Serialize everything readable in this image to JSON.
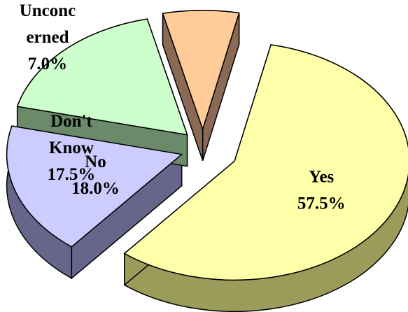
{
  "chart_data": {
    "type": "pie",
    "style": "3d-exploded",
    "slices": [
      {
        "category": "Yes",
        "value": 57.5,
        "value_label": "57.5%",
        "label_lines": [
          "Yes",
          "57.5%"
        ],
        "color": "#FFFFAA",
        "side_color": "#9C9C5A"
      },
      {
        "category": "No",
        "value": 18.0,
        "value_label": "18.0%",
        "label_lines": [
          "No",
          "18.0%"
        ],
        "color": "#CCCCFF",
        "side_color": "#66668A"
      },
      {
        "category": "Don't Know",
        "value": 17.5,
        "value_label": "17.5%",
        "label_lines": [
          "Don't",
          "Know",
          "17.5%"
        ],
        "color": "#CCFFCC",
        "side_color": "#6A8A6A"
      },
      {
        "category": "Unconcerned",
        "value": 7.0,
        "value_label": "7.0%",
        "label_lines": [
          "Unconc",
          "erned",
          "7.0%"
        ],
        "color": "#FFCC99",
        "side_color": "#8A6A55"
      }
    ]
  }
}
